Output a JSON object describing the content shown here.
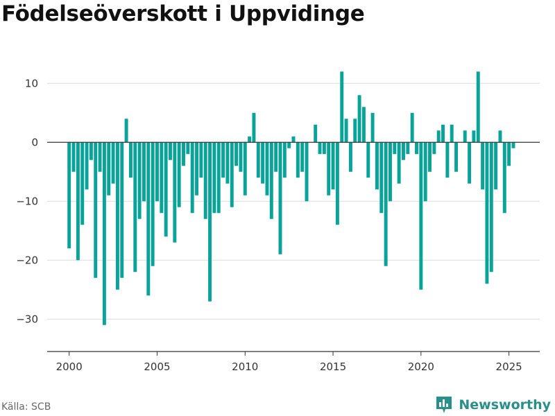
{
  "title": "Födelseöverskott i Uppvidinge",
  "source": "Källa: SCB",
  "brand": {
    "name": "Newsworthy",
    "logo_icon": "bar-chart-logo-icon",
    "color": "#2a8f8a"
  },
  "chart_data": {
    "type": "bar",
    "title": "Födelseöverskott i Uppvidinge",
    "xlabel": "",
    "ylabel": "",
    "bar_color": "#0aa39a",
    "grid": true,
    "xlim": [
      1998.75,
      2026.75
    ],
    "ylim": [
      -35.5,
      14.5
    ],
    "x_ticks": [
      2000,
      2005,
      2010,
      2015,
      2020,
      2025
    ],
    "y_ticks": [
      -30,
      -20,
      -10,
      0,
      10
    ],
    "series": [
      {
        "x": [
          "2000-Q1",
          "2000-Q2",
          "2000-Q3",
          "2000-Q4",
          "2001-Q1",
          "2001-Q2",
          "2001-Q3",
          "2001-Q4",
          "2002-Q1",
          "2002-Q2",
          "2002-Q3",
          "2002-Q4",
          "2003-Q1",
          "2003-Q2",
          "2003-Q3",
          "2003-Q4",
          "2004-Q1",
          "2004-Q2",
          "2004-Q3",
          "2004-Q4",
          "2005-Q1",
          "2005-Q2",
          "2005-Q3",
          "2005-Q4",
          "2006-Q1",
          "2006-Q2",
          "2006-Q3",
          "2006-Q4",
          "2007-Q1",
          "2007-Q2",
          "2007-Q3",
          "2007-Q4",
          "2008-Q1",
          "2008-Q2",
          "2008-Q3",
          "2008-Q4",
          "2009-Q1",
          "2009-Q2",
          "2009-Q3",
          "2009-Q4",
          "2010-Q1",
          "2010-Q2",
          "2010-Q3",
          "2010-Q4",
          "2011-Q1",
          "2011-Q2",
          "2011-Q3",
          "2011-Q4",
          "2012-Q1",
          "2012-Q2",
          "2012-Q3",
          "2012-Q4",
          "2013-Q1",
          "2013-Q2",
          "2013-Q3",
          "2013-Q4",
          "2014-Q1",
          "2014-Q2",
          "2014-Q3",
          "2014-Q4",
          "2015-Q1",
          "2015-Q2",
          "2015-Q3",
          "2015-Q4",
          "2016-Q1",
          "2016-Q2",
          "2016-Q3",
          "2016-Q4",
          "2017-Q1",
          "2017-Q2",
          "2017-Q3",
          "2017-Q4",
          "2018-Q1",
          "2018-Q2",
          "2018-Q3",
          "2018-Q4",
          "2019-Q1",
          "2019-Q2",
          "2019-Q3",
          "2019-Q4",
          "2020-Q1",
          "2020-Q2",
          "2020-Q3",
          "2020-Q4",
          "2021-Q1",
          "2021-Q2",
          "2021-Q3",
          "2021-Q4",
          "2022-Q1",
          "2022-Q2",
          "2022-Q3",
          "2022-Q4",
          "2023-Q1",
          "2023-Q2",
          "2023-Q3",
          "2023-Q4",
          "2024-Q1",
          "2024-Q2",
          "2024-Q3",
          "2024-Q4",
          "2025-Q1",
          "2025-Q2"
        ],
        "values": [
          -18,
          -5,
          -20,
          -14,
          -8,
          -3,
          -23,
          -5,
          -31,
          -9,
          -7,
          -25,
          -23,
          4,
          -6,
          -22,
          -13,
          -10,
          -26,
          -21,
          -10,
          -12,
          -16,
          -3,
          -17,
          -11,
          -4,
          -2,
          -12,
          -9,
          -6,
          -13,
          -27,
          -12,
          -12,
          -6,
          -7,
          -11,
          -4,
          -5,
          -9,
          1,
          5,
          -6,
          -7,
          -9,
          -13,
          -5,
          -19,
          -6,
          -1,
          1,
          -6,
          -5,
          -10,
          0,
          3,
          -2,
          -2,
          -9,
          -8,
          -14,
          12,
          4,
          -5,
          4,
          8,
          6,
          -6,
          5,
          -8,
          -12,
          -21,
          -10,
          -2,
          -7,
          -3,
          -2,
          5,
          -2,
          -25,
          -10,
          -5,
          -2,
          2,
          3,
          -6,
          3,
          -5,
          0,
          2,
          -7,
          2,
          12,
          -8,
          -24,
          -22,
          -8,
          2,
          -12,
          -4,
          -1
        ]
      }
    ]
  }
}
